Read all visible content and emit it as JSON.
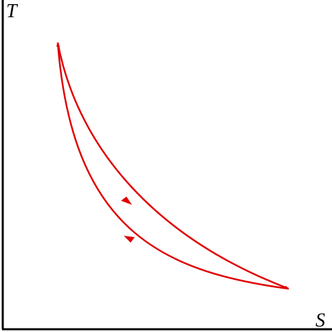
{
  "axes": {
    "y_label": "T",
    "x_label": "S"
  }
}
